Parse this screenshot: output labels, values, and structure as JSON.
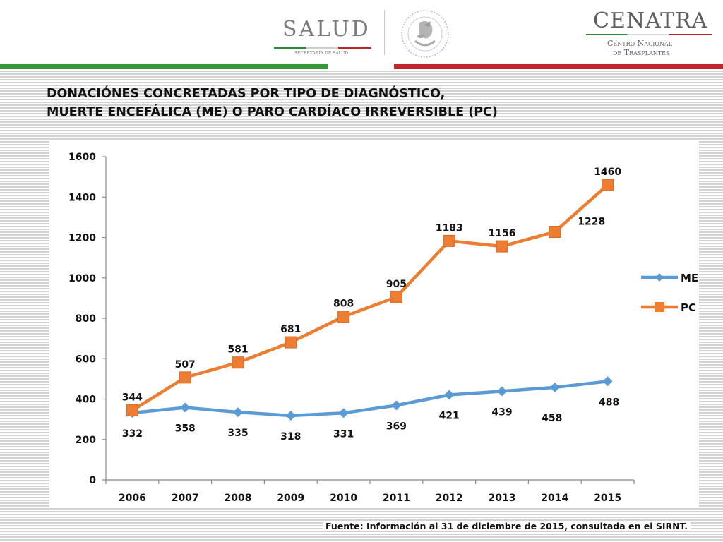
{
  "header": {
    "salud": {
      "name": "SALUD",
      "subtitle": "SECRETARÍA DE SALUD"
    },
    "cenatra": {
      "name": "CENATRA",
      "subtitle_line1": "Centro Nacional",
      "subtitle_line2": "de Trasplantes"
    },
    "emblem_icon": "mexican-coat-of-arms-icon"
  },
  "colors": {
    "green": "#339b3c",
    "red": "#c0272d",
    "series_me": "#5b9bd5",
    "series_pc": "#ed7d31"
  },
  "title": {
    "line1": "DONACIÓNES CONCRETADAS POR TIPO DE DIAGNÓSTICO,",
    "line2": "MUERTE ENCEFÁLICA (ME) O PARO CARDÍACO IRREVERSIBLE (PC)"
  },
  "chart_data": {
    "type": "line",
    "categories": [
      "2006",
      "2007",
      "2008",
      "2009",
      "2010",
      "2011",
      "2012",
      "2013",
      "2014",
      "2015"
    ],
    "series": [
      {
        "name": "ME",
        "values": [
          332,
          358,
          335,
          318,
          331,
          369,
          421,
          439,
          458,
          488
        ],
        "color": "#5b9bd5",
        "marker": "diamond"
      },
      {
        "name": "PC",
        "values": [
          344,
          507,
          581,
          681,
          808,
          905,
          1183,
          1156,
          1228,
          1460
        ],
        "color": "#ed7d31",
        "marker": "square"
      }
    ],
    "ylim": [
      0,
      1600
    ],
    "yticks": [
      0,
      200,
      400,
      600,
      800,
      1000,
      1200,
      1400,
      1600
    ],
    "legend_position": "right",
    "grid": false,
    "data_labels": true
  },
  "source": "Fuente: Información al 31 de diciembre de 2015, consultada en el SIRNT."
}
